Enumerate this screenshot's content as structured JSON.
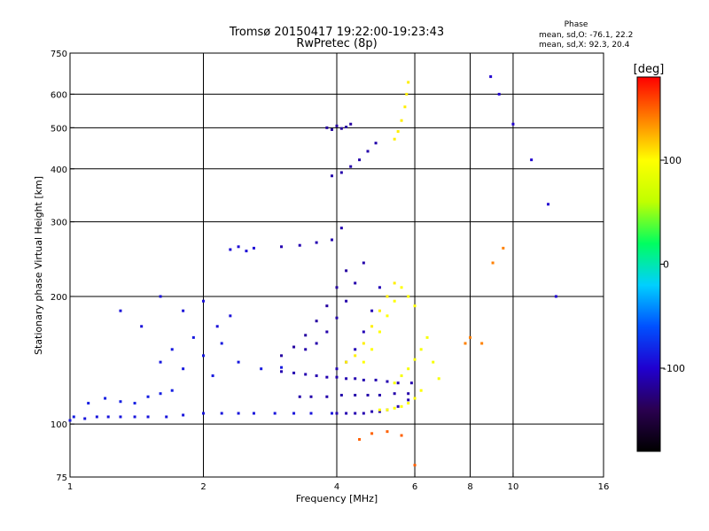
{
  "chart_data": {
    "type": "scatter",
    "title": "Tromsø 20150417 19:22:00-19:23:43",
    "subtitle": "RwPretec (8p)",
    "stats": {
      "heading": "Phase",
      "line1": "mean, sd,O: -76.1, 22.2",
      "line2": "mean, sd,X:  92.3, 20.4"
    },
    "xlabel": "Frequency [MHz]",
    "ylabel": "Stationary phase Virtual Height [km]",
    "x_scale": "log",
    "y_scale": "log",
    "xlim": [
      1,
      16
    ],
    "ylim": [
      75,
      750
    ],
    "x_ticks": [
      1,
      2,
      4,
      6,
      8,
      10,
      16
    ],
    "y_ticks": [
      75,
      100,
      200,
      300,
      400,
      500,
      600,
      750
    ],
    "x_gridlines": [
      2,
      4,
      6,
      8,
      10
    ],
    "y_gridlines": [
      100,
      200,
      300,
      400,
      500,
      600
    ],
    "grid": true,
    "colorbar": {
      "label": "[deg]",
      "range": [
        -180,
        180
      ],
      "ticks": [
        100,
        0,
        -100
      ],
      "colormap": [
        "#000000",
        "#2a0050",
        "#2000d0",
        "#0050ff",
        "#00d0ff",
        "#00ff60",
        "#c0ff00",
        "#ffff00",
        "#ff8000",
        "#ff0000"
      ]
    },
    "series": [
      {
        "x": [
          1.0,
          1.08,
          1.15,
          1.22,
          1.3,
          1.4,
          1.5,
          1.65,
          1.8,
          2.0,
          2.2,
          2.4,
          2.6,
          2.9,
          3.2,
          3.5,
          3.9
        ],
        "y": [
          102,
          103,
          104,
          104,
          104,
          104,
          104,
          104,
          105,
          106,
          106,
          106,
          106,
          106,
          106,
          106,
          106
        ],
        "phase": -90
      },
      {
        "x": [
          1.02,
          1.1,
          1.2,
          1.3,
          1.4,
          1.5,
          1.6,
          1.7
        ],
        "y": [
          104,
          112,
          115,
          113,
          112,
          116,
          118,
          120
        ],
        "phase": -85
      },
      {
        "x": [
          1.6,
          1.7,
          1.8,
          1.9,
          2.0,
          2.1,
          2.2,
          2.4,
          2.7,
          3.0
        ],
        "y": [
          140,
          150,
          135,
          160,
          145,
          130,
          155,
          140,
          135,
          136
        ],
        "phase": -88
      },
      {
        "x": [
          1.3,
          1.45,
          1.6,
          1.8,
          2.0,
          2.15,
          2.3
        ],
        "y": [
          185,
          170,
          200,
          185,
          195,
          170,
          180
        ],
        "phase": -92
      },
      {
        "x": [
          2.3,
          2.4,
          2.5,
          2.6
        ],
        "y": [
          258,
          262,
          256,
          260
        ],
        "phase": -95
      },
      {
        "x": [
          3.0,
          3.2,
          3.4,
          3.6,
          3.8,
          4.0,
          4.2,
          4.4,
          4.6,
          4.9,
          5.2,
          5.5,
          5.9
        ],
        "y": [
          133,
          132,
          131,
          130,
          129,
          129,
          128,
          128,
          127,
          127,
          126,
          125,
          125
        ],
        "phase": -110
      },
      {
        "x": [
          4.0,
          4.2,
          4.4,
          4.6,
          4.8,
          5.0,
          5.2,
          5.5,
          5.8
        ],
        "y": [
          106,
          106,
          106,
          106,
          107,
          107,
          108,
          110,
          114
        ],
        "phase": -110
      },
      {
        "x": [
          3.3,
          3.5,
          3.8,
          4.1,
          4.4,
          4.7,
          5.0,
          5.4,
          5.8
        ],
        "y": [
          116,
          116,
          116,
          117,
          117,
          117,
          117,
          118,
          118
        ],
        "phase": -112
      },
      {
        "x": [
          3.0,
          3.2,
          3.4,
          3.6,
          3.8,
          4.0,
          4.2
        ],
        "y": [
          145,
          152,
          162,
          175,
          190,
          210,
          230
        ],
        "phase": -115
      },
      {
        "x": [
          3.4,
          3.6,
          3.8,
          4.0,
          4.2,
          4.4,
          4.6
        ],
        "y": [
          150,
          155,
          165,
          178,
          195,
          215,
          240
        ],
        "phase": -112
      },
      {
        "x": [
          4.0,
          4.2,
          4.4,
          4.6,
          4.8,
          5.0
        ],
        "y": [
          135,
          140,
          150,
          165,
          185,
          210
        ],
        "phase": -108
      },
      {
        "x": [
          3.0,
          3.3,
          3.6,
          3.9,
          4.1
        ],
        "y": [
          262,
          264,
          268,
          272,
          290
        ],
        "phase": -110
      },
      {
        "x": [
          3.8,
          3.9,
          4.0,
          4.1,
          4.2,
          4.3
        ],
        "y": [
          500,
          495,
          505,
          498,
          502,
          510
        ],
        "phase": -115
      },
      {
        "x": [
          3.9,
          4.1,
          4.3,
          4.5,
          4.7,
          4.9
        ],
        "y": [
          385,
          392,
          405,
          420,
          440,
          460
        ],
        "phase": -112
      },
      {
        "x": [
          4.6,
          4.8,
          5.0,
          5.2,
          5.4,
          5.6,
          5.8,
          6.0
        ],
        "y": [
          140,
          150,
          165,
          180,
          195,
          210,
          200,
          190
        ],
        "phase": 100
      },
      {
        "x": [
          4.2,
          4.4,
          4.6,
          4.8,
          5.0,
          5.2,
          5.4
        ],
        "y": [
          140,
          145,
          155,
          170,
          185,
          200,
          215
        ],
        "phase": 105
      },
      {
        "x": [
          5.0,
          5.2,
          5.4,
          5.6,
          5.8,
          6.0,
          6.2
        ],
        "y": [
          108,
          108,
          109,
          110,
          112,
          115,
          120
        ],
        "phase": 100
      },
      {
        "x": [
          5.4,
          5.6,
          5.8,
          6.0,
          6.2,
          6.4,
          6.6,
          6.8
        ],
        "y": [
          125,
          130,
          135,
          142,
          150,
          160,
          140,
          128
        ],
        "phase": 95
      },
      {
        "x": [
          5.4,
          5.5,
          5.6,
          5.7,
          5.75,
          5.8
        ],
        "y": [
          470,
          490,
          520,
          560,
          600,
          640
        ],
        "phase": 105
      },
      {
        "x": [
          4.5,
          4.8,
          5.2,
          5.6,
          6.0
        ],
        "y": [
          92,
          95,
          96,
          94,
          80
        ],
        "phase": 150
      },
      {
        "x": [
          8.9,
          9.3,
          10.0,
          11.0,
          12.0,
          12.5
        ],
        "y": [
          660,
          600,
          510,
          420,
          330,
          200
        ],
        "phase": -100
      },
      {
        "x": [
          7.8,
          8.0,
          8.5,
          9.0,
          9.5
        ],
        "y": [
          155,
          160,
          155,
          240,
          260
        ],
        "phase": 140
      }
    ]
  }
}
